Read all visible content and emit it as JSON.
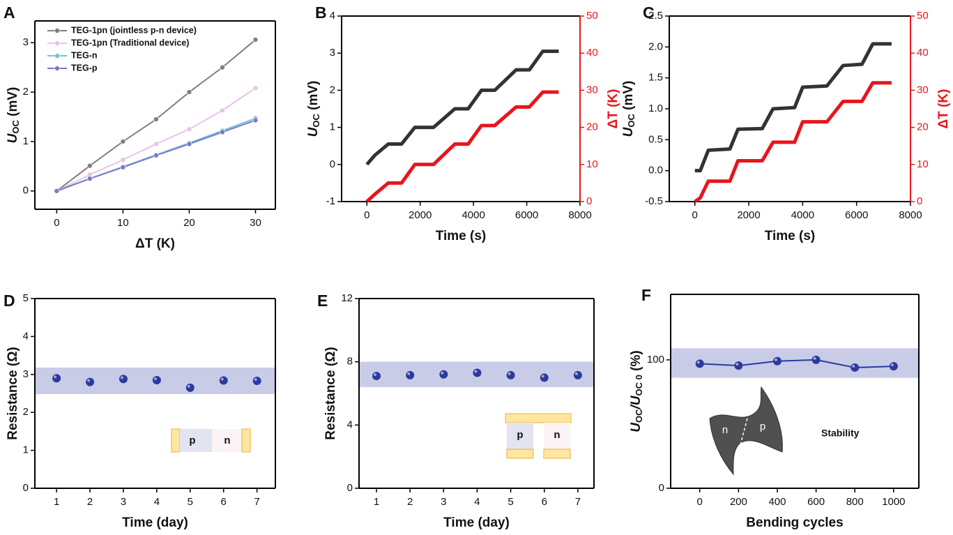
{
  "chart_data": [
    {
      "type": "line",
      "panel": "A",
      "markers": true,
      "legend": "upper left",
      "xlabel": "ΔT (K)",
      "ylabel": [
        "U",
        "OC",
        " (mV)"
      ],
      "x": [
        0,
        5,
        10,
        15,
        20,
        25,
        30
      ],
      "series": [
        {
          "name": "TEG-1pn (jointless p-n device)",
          "color": "#7f7f7f",
          "values": [
            0,
            0.51,
            1.0,
            1.45,
            2.0,
            2.5,
            3.06
          ]
        },
        {
          "name": "TEG-1pn (Traditional device)",
          "color": "#e6c3ea",
          "values": [
            0,
            0.33,
            0.63,
            0.95,
            1.25,
            1.63,
            2.08
          ]
        },
        {
          "name": "TEG-n",
          "color": "#6cc4e0",
          "values": [
            0,
            0.25,
            0.49,
            0.73,
            0.97,
            1.22,
            1.47
          ]
        },
        {
          "name": "TEG-p",
          "color": "#7b78c8",
          "values": [
            0,
            0.25,
            0.48,
            0.72,
            0.95,
            1.19,
            1.43
          ]
        }
      ],
      "xlim": [
        -3.3,
        33
      ],
      "xticks": [
        0,
        10,
        20,
        30
      ],
      "ylim": [
        -0.37,
        3.44
      ],
      "yticks": [
        0,
        1,
        2,
        3
      ]
    },
    {
      "type": "line",
      "panel": "B",
      "markers": false,
      "xlabel": "Time (s)",
      "ylabel": [
        "U",
        "OC",
        " (mV)"
      ],
      "y2label": "ΔT (K)",
      "x": [
        0,
        300,
        800,
        1300,
        1800,
        2500,
        3300,
        3800,
        4300,
        4800,
        5600,
        6100,
        6600,
        7200
      ],
      "series": [
        {
          "color": "#333333",
          "values": [
            0,
            0.25,
            0.55,
            0.55,
            1.0,
            1.0,
            1.5,
            1.5,
            2.0,
            2.0,
            2.55,
            2.55,
            3.05,
            3.05
          ]
        },
        {
          "color": "#e8141c",
          "axis": "y2",
          "values": [
            0,
            2,
            5,
            5,
            10,
            10,
            15.5,
            15.5,
            20.5,
            20.5,
            25.5,
            25.5,
            29.5,
            29.5
          ]
        }
      ],
      "xlim": [
        -950,
        8000
      ],
      "xticks": [
        0,
        2000,
        4000,
        6000,
        8000
      ],
      "ylim": [
        -1,
        4
      ],
      "yticks": [
        -1,
        0,
        1,
        2,
        3,
        4
      ],
      "y2lim": [
        0,
        50
      ],
      "y2ticks": [
        0,
        10,
        20,
        30,
        40,
        50
      ],
      "y2color": "#e8141c"
    },
    {
      "type": "line",
      "panel": "C",
      "markers": false,
      "xlabel": "Time (s)",
      "ylabel": [
        "U",
        "OC",
        " (mV)"
      ],
      "y2label": "ΔT (K)",
      "x": [
        0,
        200,
        500,
        1300,
        1600,
        2500,
        2900,
        3700,
        4000,
        4900,
        5500,
        6200,
        6600,
        7300
      ],
      "series": [
        {
          "color": "#333333",
          "values": [
            0,
            0,
            0.33,
            0.35,
            0.67,
            0.68,
            1.0,
            1.02,
            1.35,
            1.37,
            1.7,
            1.72,
            2.05,
            2.05
          ]
        },
        {
          "color": "#e8141c",
          "axis": "y2",
          "values": [
            0,
            1,
            5.5,
            5.5,
            11,
            11,
            16,
            16,
            21.5,
            21.5,
            27,
            27,
            32,
            32
          ]
        }
      ],
      "xlim": [
        -950,
        8000
      ],
      "xticks": [
        0,
        2000,
        4000,
        6000,
        8000
      ],
      "ylim": [
        -0.5,
        2.5
      ],
      "yticks": [
        -0.5,
        {
          "value": 0,
          "label": "0.0"
        },
        0.5,
        {
          "value": 1,
          "label": "1.0"
        },
        1.5,
        {
          "value": 2,
          "label": "2.0"
        },
        2.5
      ],
      "y2lim": [
        0,
        50
      ],
      "y2ticks": [
        0,
        10,
        20,
        30,
        40,
        50
      ],
      "y2color": "#e8141c"
    },
    {
      "type": "scatter",
      "panel": "D",
      "xlabel": "Time (day)",
      "ylabel": "Resistance (Ω)",
      "x": [
        1,
        2,
        3,
        4,
        5,
        6,
        7
      ],
      "series": [
        {
          "color": "#2b3a9e",
          "values": [
            2.9,
            2.8,
            2.88,
            2.85,
            2.65,
            2.84,
            2.83
          ]
        }
      ],
      "band": [
        2.48,
        3.18
      ],
      "band_color": "#c9cce6",
      "xlim": [
        0.35,
        7.55
      ],
      "xticks": [
        1,
        2,
        3,
        4,
        5,
        6,
        7
      ],
      "ylim": [
        0,
        5
      ],
      "yticks": [
        0,
        1,
        2,
        3,
        4,
        5
      ],
      "inset": {
        "labels": [
          "p",
          "n"
        ]
      }
    },
    {
      "type": "scatter",
      "panel": "E",
      "xlabel": "Time (day)",
      "ylabel": "Resistance (Ω)",
      "x": [
        1,
        2,
        3,
        4,
        5,
        6,
        7
      ],
      "series": [
        {
          "color": "#2b3a9e",
          "values": [
            7.1,
            7.15,
            7.2,
            7.3,
            7.15,
            7.0,
            7.15
          ]
        }
      ],
      "band": [
        6.4,
        8.0
      ],
      "band_color": "#c9cce6",
      "xlim": [
        0.48,
        7.48
      ],
      "xticks": [
        1,
        2,
        3,
        4,
        5,
        6,
        7
      ],
      "ylim": [
        0,
        12
      ],
      "yticks": [
        0,
        4,
        8,
        12
      ],
      "inset": {
        "labels": [
          "p",
          "n"
        ]
      }
    },
    {
      "type": "line",
      "panel": "F",
      "markers": true,
      "ball": true,
      "xlabel": "Bending cycles",
      "ylabel": [
        "U",
        "OC",
        "/U",
        "OC 0",
        " (%)"
      ],
      "x": [
        0,
        200,
        400,
        600,
        800,
        1000
      ],
      "series": [
        {
          "color": "#2b3a9e",
          "values": [
            97,
            95.5,
            99,
            100,
            94,
            95
          ]
        }
      ],
      "band": [
        86,
        109
      ],
      "band_color": "#c9cce6",
      "xlim": [
        -150,
        1130
      ],
      "xticks": [
        0,
        200,
        400,
        600,
        800,
        1000
      ],
      "ylim": [
        0,
        151
      ],
      "yticks": [
        0,
        100
      ],
      "inset": {
        "labels": [
          "n",
          "p"
        ],
        "text": "Stability"
      }
    }
  ]
}
